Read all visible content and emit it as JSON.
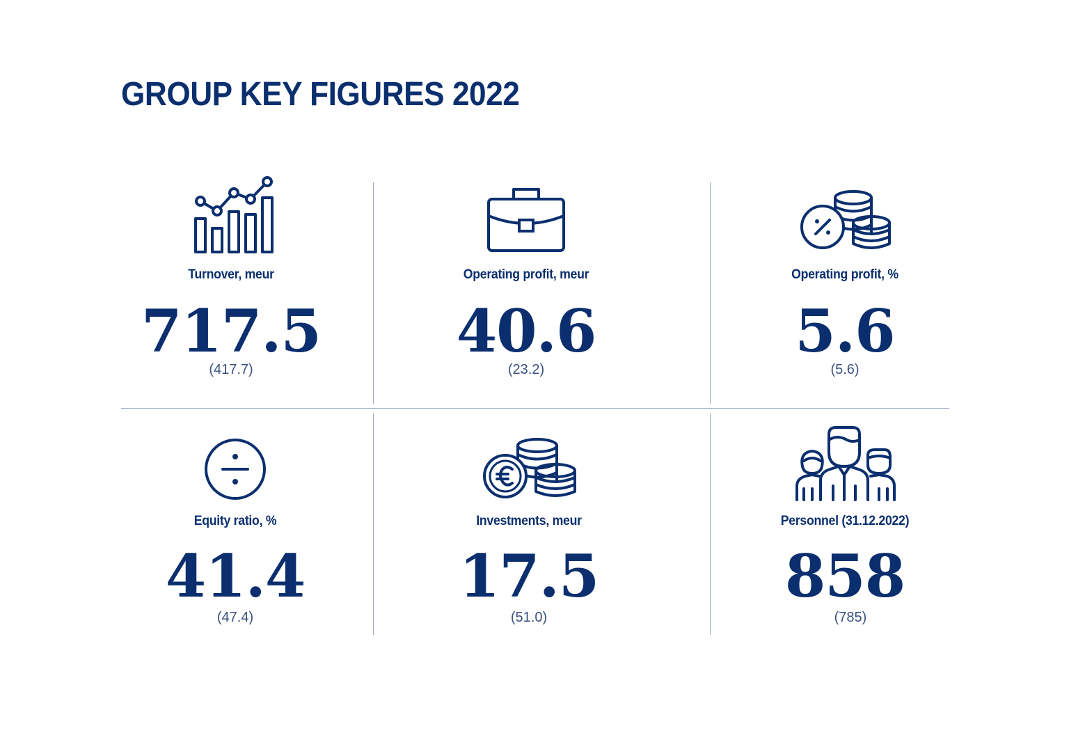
{
  "title": "GROUP KEY FIGURES 2022",
  "colors": {
    "primary": "#0b2f6e",
    "divider": "#9aa8be"
  },
  "figures": [
    {
      "icon": "bar-chart-trend-icon",
      "label": "Turnover, meur",
      "value": "717.5",
      "previous": "(417.7)"
    },
    {
      "icon": "briefcase-icon",
      "label": "Operating profit, meur",
      "value": "40.6",
      "previous": "(23.2)"
    },
    {
      "icon": "percent-coins-icon",
      "label": "Operating profit, %",
      "value": "5.6",
      "previous": "(5.6)"
    },
    {
      "icon": "division-circle-icon",
      "label": "Equity ratio, %",
      "value": "41.4",
      "previous": "(47.4)"
    },
    {
      "icon": "euro-coins-icon",
      "label": "Investments, meur",
      "value": "17.5",
      "previous": "(51.0)"
    },
    {
      "icon": "people-group-icon",
      "label": "Personnel (31.12.2022)",
      "value": "858",
      "previous": "(785)"
    }
  ]
}
